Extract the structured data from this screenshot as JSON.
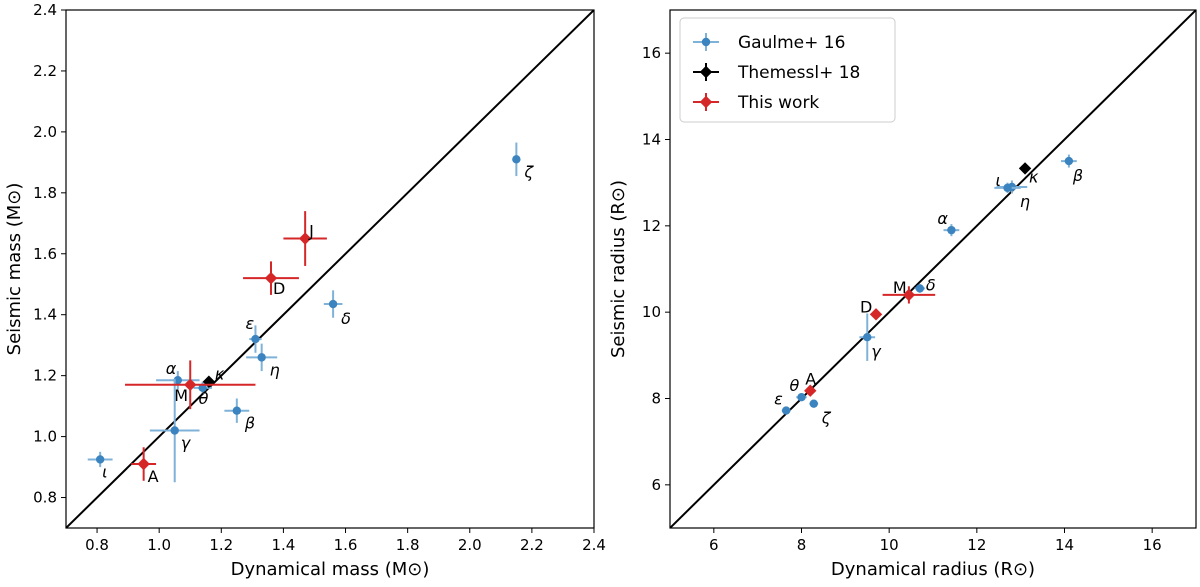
{
  "colors": {
    "gaulme": "#3b84bf",
    "gaulme_err": "#7fb2d9",
    "themessl": "#000000",
    "thiswork": "#d62728",
    "thiswork_err": "#d62728",
    "line": "#000000"
  },
  "chart_data": [
    {
      "type": "scatter",
      "xlabel": "Dynamical mass (M⊙)",
      "ylabel": "Seismic mass (M⊙)",
      "xlim": [
        0.7,
        2.4
      ],
      "ylim": [
        0.7,
        2.4
      ],
      "xticks": [
        "0.8",
        "1.0",
        "1.2",
        "1.4",
        "1.6",
        "1.8",
        "2.0",
        "2.2",
        "2.4"
      ],
      "yticks": [
        "0.8",
        "1.0",
        "1.2",
        "1.4",
        "1.6",
        "1.8",
        "2.0",
        "2.2",
        "2.4"
      ],
      "reference_line": "1:1",
      "series": [
        {
          "name": "Gaulme+ 16",
          "marker": "circle",
          "points": [
            {
              "label": "ι",
              "x": 0.81,
              "y": 0.925,
              "xerr": 0.04,
              "yerr": 0.025
            },
            {
              "label": "α",
              "x": 1.06,
              "y": 1.185,
              "xerr": 0.07,
              "yerr": 0.03
            },
            {
              "label": "γ",
              "x": 1.05,
              "y": 1.02,
              "xerr": 0.08,
              "yerr": 0.17
            },
            {
              "label": "θ",
              "x": 1.14,
              "y": 1.16,
              "xerr": 0.03,
              "yerr": 0.02
            },
            {
              "label": "β",
              "x": 1.25,
              "y": 1.085,
              "xerr": 0.04,
              "yerr": 0.04
            },
            {
              "label": "ε",
              "x": 1.31,
              "y": 1.32,
              "xerr": 0.02,
              "yerr": 0.045
            },
            {
              "label": "η",
              "x": 1.33,
              "y": 1.26,
              "xerr": 0.05,
              "yerr": 0.045
            },
            {
              "label": "δ",
              "x": 1.56,
              "y": 1.435,
              "xerr": 0.03,
              "yerr": 0.045
            },
            {
              "label": "ζ",
              "x": 2.15,
              "y": 1.91,
              "xerr": 0.01,
              "yerr": 0.055
            }
          ]
        },
        {
          "name": "Themessl+ 18",
          "marker": "diamond",
          "points": [
            {
              "label": "κ",
              "x": 1.16,
              "y": 1.18,
              "xerr": 0.005,
              "yerr": 0.01
            }
          ]
        },
        {
          "name": "This work",
          "marker": "diamond",
          "points": [
            {
              "label": "A",
              "x": 0.95,
              "y": 0.91,
              "xerr": 0.04,
              "yerr": 0.055
            },
            {
              "label": "M",
              "x": 1.1,
              "y": 1.17,
              "xerr": 0.21,
              "yerr": 0.08
            },
            {
              "label": "D",
              "x": 1.36,
              "y": 1.52,
              "xerr": 0.09,
              "yerr": 0.055
            },
            {
              "label": "J",
              "x": 1.47,
              "y": 1.65,
              "xerr": 0.07,
              "yerr": 0.09
            }
          ]
        }
      ]
    },
    {
      "type": "scatter",
      "xlabel": "Dynamical radius (R⊙)",
      "ylabel": "Seismic radius (R⊙)",
      "xlim": [
        5,
        17
      ],
      "ylim": [
        5,
        17
      ],
      "xticks": [
        "6",
        "8",
        "10",
        "12",
        "14",
        "16"
      ],
      "yticks": [
        "6",
        "8",
        "10",
        "12",
        "14",
        "16"
      ],
      "reference_line": "1:1",
      "legend": {
        "placement": "upper-left",
        "entries": [
          "Gaulme+ 16",
          "Themessl+ 18",
          "This work"
        ]
      },
      "series": [
        {
          "name": "Gaulme+ 16",
          "marker": "circle",
          "points": [
            {
              "label": "ε",
              "x": 7.65,
              "y": 7.72,
              "xerr": 0.1,
              "yerr": 0.08
            },
            {
              "label": "θ",
              "x": 8.0,
              "y": 8.03,
              "xerr": 0.12,
              "yerr": 0.08
            },
            {
              "label": "ζ",
              "x": 8.28,
              "y": 7.88,
              "xerr": 0.1,
              "yerr": 0.08
            },
            {
              "label": "γ",
              "x": 9.5,
              "y": 9.42,
              "xerr": 0.18,
              "yerr": 0.55
            },
            {
              "label": "δ",
              "x": 10.7,
              "y": 10.55,
              "xerr": 0.12,
              "yerr": 0.1
            },
            {
              "label": "α",
              "x": 11.42,
              "y": 11.9,
              "xerr": 0.18,
              "yerr": 0.14
            },
            {
              "label": "η",
              "x": 12.8,
              "y": 12.9,
              "xerr": 0.35,
              "yerr": 0.15
            },
            {
              "label": "ι",
              "x": 12.7,
              "y": 12.88,
              "xerr": 0.3,
              "yerr": 0.12
            },
            {
              "label": "β",
              "x": 14.1,
              "y": 13.5,
              "xerr": 0.18,
              "yerr": 0.15
            }
          ]
        },
        {
          "name": "Themessl+ 18",
          "marker": "diamond",
          "points": [
            {
              "label": "κ",
              "x": 13.1,
              "y": 13.33,
              "xerr": 0.05,
              "yerr": 0.05
            }
          ]
        },
        {
          "name": "This work",
          "marker": "diamond",
          "points": [
            {
              "label": "A",
              "x": 8.2,
              "y": 8.18,
              "xerr": 0.1,
              "yerr": 0.1
            },
            {
              "label": "D",
              "x": 9.7,
              "y": 9.95,
              "xerr": 0.1,
              "yerr": 0.1
            },
            {
              "label": "M",
              "x": 10.45,
              "y": 10.4,
              "xerr": 0.6,
              "yerr": 0.2
            }
          ]
        }
      ]
    }
  ]
}
